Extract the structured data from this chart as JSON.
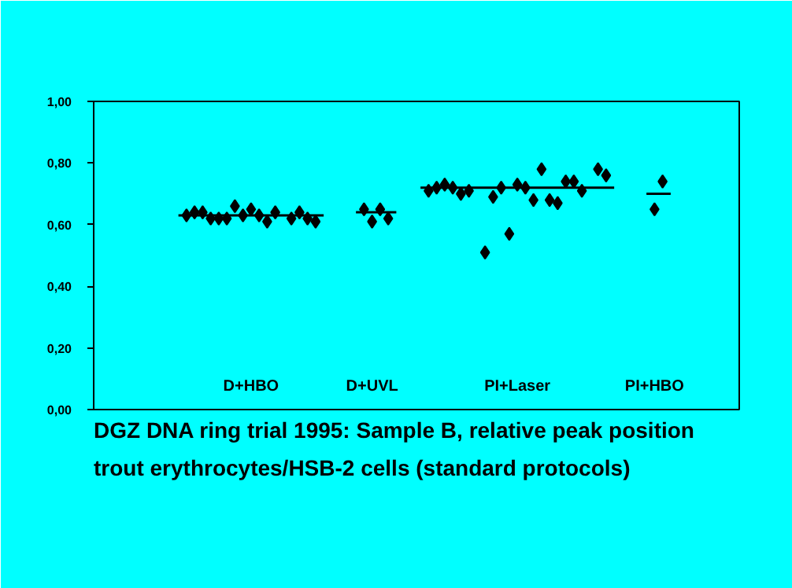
{
  "chart_data": {
    "type": "scatter",
    "marker": "diamond",
    "grid": false,
    "ylim": [
      0,
      1
    ],
    "yticks": [
      {
        "value": 0,
        "label": "0,00"
      },
      {
        "value": 0.2,
        "label": "0,20"
      },
      {
        "value": 0.4,
        "label": "0,40"
      },
      {
        "value": 0.6,
        "label": "0,60"
      },
      {
        "value": 0.8,
        "label": "0,80"
      },
      {
        "value": 1,
        "label": "1,00"
      }
    ],
    "categories": [
      null,
      null,
      null,
      null,
      null,
      null,
      null,
      null,
      null,
      null,
      null,
      null,
      null,
      null,
      null,
      null,
      null,
      null,
      null,
      "D+HBO",
      null,
      null,
      null,
      null,
      null,
      null,
      null,
      null,
      null,
      null,
      null,
      null,
      null,
      null,
      "D+UVL",
      null,
      null,
      null,
      null,
      null,
      null,
      null,
      null,
      null,
      null,
      null,
      null,
      null,
      null,
      null,
      null,
      null,
      "PI+Laser",
      null,
      null,
      null,
      null,
      null,
      null,
      null,
      null,
      null,
      null,
      null,
      null,
      null,
      null,
      null,
      null,
      "PI+HBO",
      null,
      null,
      null,
      null,
      null,
      null,
      null,
      null,
      null,
      null
    ],
    "series": [
      {
        "color": "#000000",
        "values": [
          null,
          null,
          null,
          null,
          null,
          null,
          null,
          null,
          null,
          null,
          null,
          0.63,
          0.64,
          0.64,
          0.62,
          0.62,
          0.62,
          0.66,
          0.63,
          0.65,
          0.63,
          0.61,
          0.64,
          null,
          0.62,
          0.64,
          0.62,
          0.61,
          null,
          null,
          null,
          null,
          null,
          0.65,
          0.61,
          0.65,
          0.62,
          null,
          null,
          null,
          null,
          0.71,
          0.72,
          0.73,
          0.72,
          0.7,
          0.71,
          null,
          0.51,
          0.69,
          0.72,
          0.57,
          0.73,
          0.72,
          0.68,
          0.78,
          0.68,
          0.67,
          0.74,
          0.74,
          0.71,
          null,
          0.78,
          0.76,
          null,
          null,
          null,
          null,
          null,
          0.65,
          0.74,
          null,
          null,
          null,
          null,
          null,
          null,
          null,
          null,
          null
        ]
      },
      {
        "type": "line",
        "marker": "none",
        "color": "#000000",
        "values": [
          null,
          null,
          null,
          null,
          null,
          null,
          null,
          null,
          null,
          null,
          0.63,
          0.63,
          0.63,
          0.63,
          0.63,
          0.63,
          0.63,
          0.63,
          0.63,
          0.63,
          0.63,
          0.63,
          0.63,
          0.63,
          0.63,
          0.63,
          0.63,
          0.63,
          0.63,
          null,
          null,
          null,
          0.64,
          0.64,
          0.64,
          0.64,
          0.64,
          0.64,
          null,
          null,
          0.72,
          0.72,
          0.72,
          0.72,
          0.72,
          0.72,
          0.72,
          0.72,
          0.72,
          0.72,
          0.72,
          0.72,
          0.72,
          0.72,
          0.72,
          0.72,
          0.72,
          0.72,
          0.72,
          0.72,
          0.72,
          0.72,
          0.72,
          0.72,
          0.72,
          null,
          null,
          null,
          0.7,
          0.7,
          0.7,
          0.7,
          null,
          null,
          null,
          null,
          null,
          null,
          null,
          null
        ]
      }
    ],
    "annotations": [
      "DGZ DNA ring trial 1995:   Sample B, relative peak position",
      "trout erythrocytes/HSB-2 cells (standard protocols)"
    ]
  }
}
